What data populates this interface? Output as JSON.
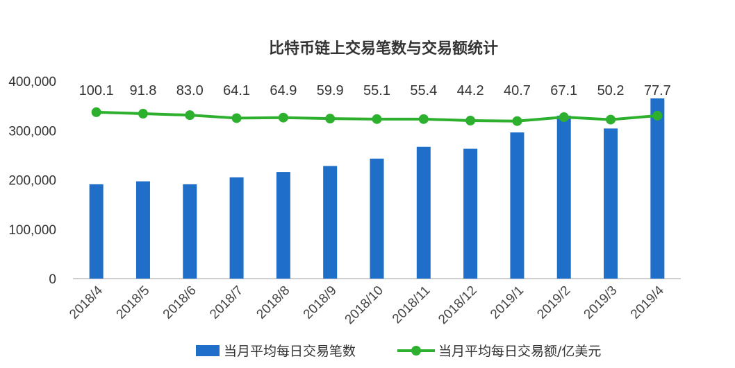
{
  "chart_data": {
    "type": "bar",
    "title": "比特币链上交易笔数与交易额统计",
    "categories": [
      "2018/4",
      "2018/5",
      "2018/6",
      "2018/7",
      "2018/8",
      "2018/9",
      "2018/10",
      "2018/11",
      "2018/12",
      "2019/1",
      "2019/2",
      "2019/3",
      "2019/4"
    ],
    "y_ticks": [
      "0",
      "100,000",
      "200,000",
      "300,000",
      "400,000"
    ],
    "ylim": [
      0,
      400000
    ],
    "series": [
      {
        "name": "当月平均每日交易笔数",
        "type": "bar",
        "color": "#1f6fc9",
        "values": [
          191000,
          197000,
          191000,
          205000,
          216000,
          228000,
          243000,
          267000,
          263000,
          296000,
          330000,
          304000,
          365000
        ]
      },
      {
        "name": "当月平均每日交易额/亿美元",
        "type": "line",
        "color": "#2db02d",
        "values": [
          100.1,
          91.8,
          83.0,
          64.1,
          64.9,
          59.9,
          55.1,
          55.4,
          44.2,
          40.7,
          67.1,
          50.2,
          77.7
        ],
        "labels": [
          "100.1",
          "91.8",
          "83.0",
          "64.1",
          "64.9",
          "59.9",
          "55.1",
          "55.4",
          "44.2",
          "40.7",
          "67.1",
          "50.2",
          "77.7"
        ],
        "marker_positions_primary_axis": [
          337000,
          334000,
          331000,
          325000,
          326000,
          324000,
          323000,
          323000,
          320000,
          319000,
          327000,
          322000,
          330000
        ]
      }
    ],
    "legend": "bottom",
    "grid": false
  }
}
